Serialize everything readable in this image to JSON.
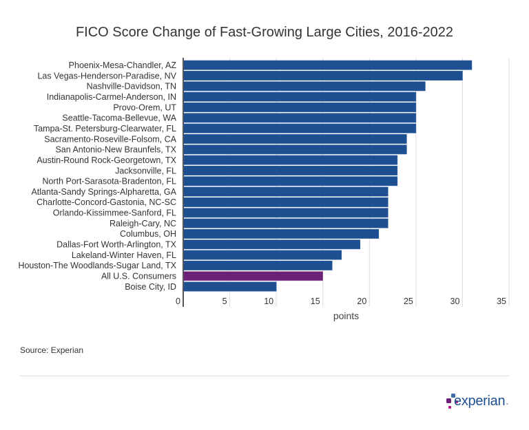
{
  "chart_data": {
    "type": "bar",
    "orientation": "horizontal",
    "title": "FICO Score Change of Fast-Growing Large Cities, 2016-2022",
    "xlabel": "points",
    "ylabel": "",
    "xlim": [
      0,
      35
    ],
    "xticks": [
      0,
      5,
      10,
      15,
      20,
      25,
      30,
      35
    ],
    "grid": true,
    "categories": [
      "Phoenix-Mesa-Chandler, AZ",
      "Las Vegas-Henderson-Paradise, NV",
      "Nashville-Davidson, TN",
      "Indianapolis-Carmel-Anderson, IN",
      "Provo-Orem, UT",
      "Seattle-Tacoma-Bellevue, WA",
      "Tampa-St. Petersburg-Clearwater, FL",
      "Sacramento-Roseville-Folsom, CA",
      "San Antonio-New Braunfels, TX",
      "Austin-Round Rock-Georgetown, TX",
      "Jacksonville, FL",
      "North Port-Sarasota-Bradenton, FL",
      "Atlanta-Sandy Springs-Alpharetta, GA",
      "Charlotte-Concord-Gastonia, NC-SC",
      "Orlando-Kissimmee-Sanford, FL",
      "Raleigh-Cary, NC",
      "Columbus, OH",
      "Dallas-Fort Worth-Arlington, TX",
      "Lakeland-Winter Haven, FL",
      "Houston-The Woodlands-Sugar Land, TX",
      "All U.S. Consumers",
      "Boise City, ID"
    ],
    "values": [
      31,
      30,
      26,
      25,
      25,
      25,
      25,
      24,
      24,
      23,
      23,
      23,
      22,
      22,
      22,
      22,
      21,
      19,
      17,
      16,
      15,
      10
    ],
    "colors": {
      "default": "#1d4f91",
      "highlight": "#6d2077"
    },
    "highlight_category": "All U.S. Consumers"
  },
  "source": "Source: Experian",
  "logo": {
    "text": "experian",
    "tm": "™"
  }
}
